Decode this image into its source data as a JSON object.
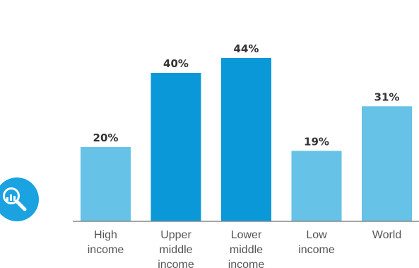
{
  "chart_data": {
    "type": "bar",
    "title": "",
    "xlabel": "",
    "ylabel": "",
    "ylim": [
      0,
      50
    ],
    "grid": false,
    "legend": "none",
    "categories": [
      [
        "High",
        "income"
      ],
      [
        "Upper",
        "middle",
        "income"
      ],
      [
        "Lower",
        "middle",
        "income"
      ],
      [
        "Low",
        "income"
      ],
      [
        "World"
      ]
    ],
    "values": [
      20,
      40,
      44,
      19,
      31
    ],
    "value_labels": [
      "20%",
      "40%",
      "44%",
      "19%",
      "31%"
    ],
    "bar_colors": [
      "#66c2e6",
      "#0a98d9",
      "#0a98d9",
      "#66c2e6",
      "#66c2e6"
    ],
    "axis_color": "#888888",
    "value_label_color": "#333333",
    "category_label_color": "#555555"
  },
  "decor": {
    "icon": "magnifier-chart-icon",
    "icon_color": "#1aa3e0"
  }
}
